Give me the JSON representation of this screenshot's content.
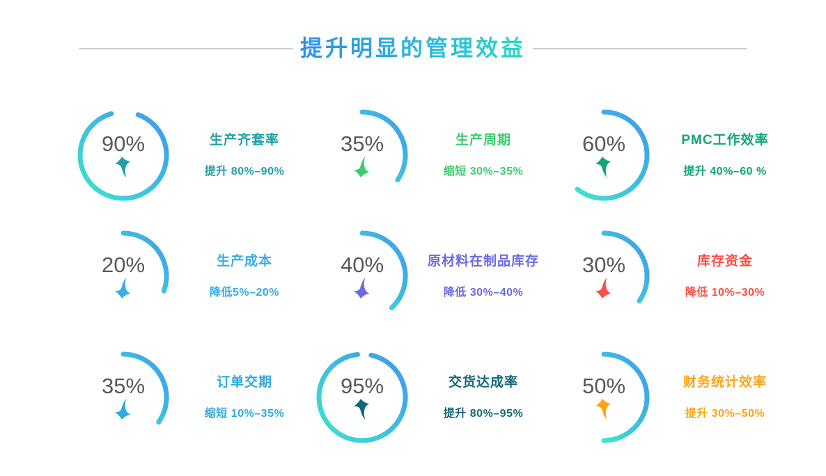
{
  "header": {
    "title": "提升明显的管理效益",
    "title_gradient": [
      "#2e90e9",
      "#2bd9cb"
    ],
    "rule_color": "#cccccc"
  },
  "chart_data": {
    "type": "gauge",
    "title": "提升明显的管理效益",
    "legend_position": "none",
    "value_color": "#57585b",
    "ring_gradient": [
      "#3e97f1",
      "#3de5cd"
    ],
    "items": [
      {
        "value": "90%",
        "pct": 90,
        "title": "生产齐套率",
        "change": "提升 80%–90%",
        "direction": "up",
        "accent": "#1fa0a8",
        "start_deg": 20,
        "sweep_deg": 324
      },
      {
        "value": "35%",
        "pct": 35,
        "title": "生产周期",
        "change": "缩短 30%–35%",
        "direction": "down",
        "accent": "#3ecc70",
        "start_deg": 0,
        "sweep_deg": 125
      },
      {
        "value": "60%",
        "pct": 60,
        "title": "PMC工作效率",
        "change": "提升 40%–60 %",
        "direction": "up",
        "accent": "#0fa578",
        "start_deg": 0,
        "sweep_deg": 218
      },
      {
        "value": "20%",
        "pct": 20,
        "title": "生产成本",
        "change": "降低5%–20%",
        "direction": "down",
        "accent": "#38ade4",
        "start_deg": 0,
        "sweep_deg": 110
      },
      {
        "value": "40%",
        "pct": 40,
        "title": "原材料在制品库存",
        "change": "降低 30%–40%",
        "direction": "down",
        "accent": "#6b6bdf",
        "start_deg": 0,
        "sweep_deg": 137
      },
      {
        "value": "30%",
        "pct": 30,
        "title": "库存资金",
        "change": "降低 10%–30%",
        "direction": "down",
        "accent": "#fc4f45",
        "start_deg": 0,
        "sweep_deg": 125
      },
      {
        "value": "35%",
        "pct": 35,
        "title": "订单交期",
        "change": "缩短 10%–35%",
        "direction": "down",
        "accent": "#2fa9e0",
        "start_deg": 0,
        "sweep_deg": 125
      },
      {
        "value": "95%",
        "pct": 95,
        "title": "交货达成率",
        "change": "提升 80%–95%",
        "direction": "up",
        "accent": "#14677b",
        "start_deg": 12,
        "sweep_deg": 342
      },
      {
        "value": "50%",
        "pct": 50,
        "title": "财务统计效率",
        "change": "提升 30%–50%",
        "direction": "up",
        "accent": "#ffa414",
        "start_deg": 0,
        "sweep_deg": 180
      }
    ]
  }
}
